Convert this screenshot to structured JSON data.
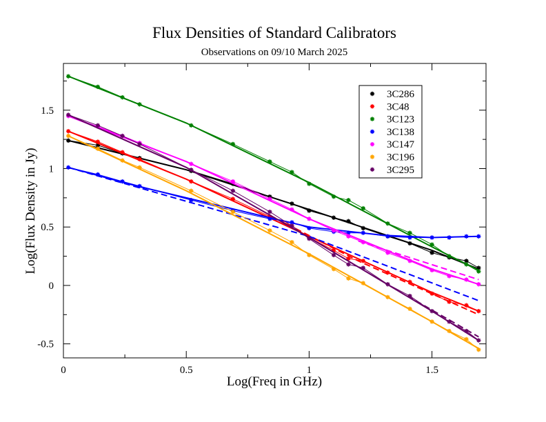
{
  "chart_data": {
    "type": "line",
    "title": "Flux Densities of Standard Calibrators",
    "subtitle": "Observations on 09/10 March 2025",
    "xlabel": "Log(Freq in GHz)",
    "ylabel": "Log(Flux Density in Jy)",
    "xlim": [
      0,
      1.72
    ],
    "ylim": [
      -0.62,
      1.9
    ],
    "x_ticks": [
      0,
      0.5,
      1,
      1.5
    ],
    "x_tick_labels": [
      "0",
      "0.5",
      "1",
      "1.5"
    ],
    "y_ticks": [
      -0.5,
      0,
      0.5,
      1,
      1.5
    ],
    "y_tick_labels": [
      "-0.5",
      "0",
      "0.5",
      "1",
      "1.5"
    ],
    "legend_position": "top-right",
    "series": [
      {
        "name": "3C286",
        "color": "#000000",
        "points": [
          [
            0.02,
            1.24
          ],
          [
            0.14,
            1.2
          ],
          [
            0.24,
            1.13
          ],
          [
            0.31,
            1.09
          ],
          [
            0.52,
            0.98
          ],
          [
            0.69,
            0.87
          ],
          [
            0.84,
            0.76
          ],
          [
            0.93,
            0.7
          ],
          [
            1.0,
            0.64
          ],
          [
            1.1,
            0.58
          ],
          [
            1.16,
            0.55
          ],
          [
            1.22,
            0.49
          ],
          [
            1.32,
            0.42
          ],
          [
            1.41,
            0.36
          ],
          [
            1.5,
            0.28
          ],
          [
            1.57,
            0.24
          ],
          [
            1.64,
            0.21
          ],
          [
            1.69,
            0.15
          ]
        ],
        "fit": [
          [
            0.02,
            1.24
          ],
          [
            0.5,
            0.99
          ],
          [
            1.0,
            0.65
          ],
          [
            1.5,
            0.3
          ],
          [
            1.69,
            0.14
          ]
        ]
      },
      {
        "name": "3C48",
        "color": "#ff0000",
        "points": [
          [
            0.02,
            1.32
          ],
          [
            0.14,
            1.23
          ],
          [
            0.24,
            1.14
          ],
          [
            0.31,
            1.08
          ],
          [
            0.52,
            0.89
          ],
          [
            0.69,
            0.74
          ],
          [
            0.84,
            0.59
          ],
          [
            0.93,
            0.51
          ],
          [
            1.0,
            0.41
          ],
          [
            1.1,
            0.3
          ],
          [
            1.16,
            0.23
          ],
          [
            1.22,
            0.21
          ],
          [
            1.32,
            0.11
          ],
          [
            1.41,
            0.03
          ],
          [
            1.5,
            -0.07
          ],
          [
            1.57,
            -0.14
          ],
          [
            1.64,
            -0.17
          ],
          [
            1.69,
            -0.22
          ]
        ],
        "fit": [
          [
            0.02,
            1.32
          ],
          [
            0.5,
            0.91
          ],
          [
            1.0,
            0.42
          ],
          [
            1.5,
            -0.06
          ],
          [
            1.69,
            -0.22
          ]
        ],
        "fit_dashed": [
          [
            0.84,
            0.6
          ],
          [
            1.2,
            0.21
          ],
          [
            1.69,
            -0.25
          ]
        ]
      },
      {
        "name": "3C123",
        "color": "#008000",
        "points": [
          [
            0.02,
            1.79
          ],
          [
            0.14,
            1.7
          ],
          [
            0.24,
            1.61
          ],
          [
            0.31,
            1.55
          ],
          [
            0.52,
            1.37
          ],
          [
            0.69,
            1.21
          ],
          [
            0.84,
            1.06
          ],
          [
            0.93,
            0.97
          ],
          [
            1.0,
            0.87
          ],
          [
            1.1,
            0.76
          ],
          [
            1.16,
            0.73
          ],
          [
            1.22,
            0.66
          ],
          [
            1.32,
            0.53
          ],
          [
            1.41,
            0.45
          ],
          [
            1.5,
            0.35
          ],
          [
            1.57,
            0.25
          ],
          [
            1.64,
            0.18
          ],
          [
            1.69,
            0.12
          ]
        ],
        "fit": [
          [
            0.02,
            1.79
          ],
          [
            0.5,
            1.39
          ],
          [
            1.0,
            0.88
          ],
          [
            1.5,
            0.33
          ],
          [
            1.69,
            0.13
          ]
        ]
      },
      {
        "name": "3C138",
        "color": "#0000ff",
        "points": [
          [
            0.02,
            1.01
          ],
          [
            0.14,
            0.95
          ],
          [
            0.24,
            0.89
          ],
          [
            0.31,
            0.85
          ],
          [
            0.52,
            0.73
          ],
          [
            0.69,
            0.64
          ],
          [
            0.84,
            0.57
          ],
          [
            0.93,
            0.54
          ],
          [
            1.0,
            0.49
          ],
          [
            1.1,
            0.46
          ],
          [
            1.16,
            0.45
          ],
          [
            1.22,
            0.45
          ],
          [
            1.32,
            0.42
          ],
          [
            1.41,
            0.41
          ],
          [
            1.5,
            0.41
          ],
          [
            1.57,
            0.41
          ],
          [
            1.64,
            0.42
          ],
          [
            1.69,
            0.42
          ]
        ],
        "fit": [
          [
            0.02,
            1.01
          ],
          [
            0.3,
            0.85
          ],
          [
            0.5,
            0.75
          ],
          [
            0.8,
            0.6
          ],
          [
            1.0,
            0.5
          ],
          [
            1.3,
            0.43
          ],
          [
            1.5,
            0.41
          ],
          [
            1.69,
            0.42
          ]
        ],
        "fit_dashed": [
          [
            0.02,
            1.01
          ],
          [
            0.5,
            0.72
          ],
          [
            1.0,
            0.42
          ],
          [
            1.69,
            -0.13
          ]
        ]
      },
      {
        "name": "3C147",
        "color": "#ff00ff",
        "points": [
          [
            0.02,
            1.45
          ],
          [
            0.14,
            1.36
          ],
          [
            0.24,
            1.28
          ],
          [
            0.31,
            1.22
          ],
          [
            0.52,
            1.04
          ],
          [
            0.69,
            0.89
          ],
          [
            0.84,
            0.74
          ],
          [
            0.93,
            0.65
          ],
          [
            1.0,
            0.57
          ],
          [
            1.1,
            0.47
          ],
          [
            1.16,
            0.42
          ],
          [
            1.22,
            0.37
          ],
          [
            1.32,
            0.28
          ],
          [
            1.41,
            0.21
          ],
          [
            1.5,
            0.13
          ],
          [
            1.57,
            0.08
          ],
          [
            1.64,
            0.05
          ],
          [
            1.69,
            0.01
          ]
        ],
        "fit": [
          [
            0.02,
            1.45
          ],
          [
            0.5,
            1.06
          ],
          [
            1.0,
            0.57
          ],
          [
            1.5,
            0.14
          ],
          [
            1.69,
            0.01
          ]
        ],
        "fit_dashed": [
          [
            1.2,
            0.38
          ],
          [
            1.69,
            0.05
          ]
        ]
      },
      {
        "name": "3C196",
        "color": "#ffa500",
        "points": [
          [
            0.02,
            1.28
          ],
          [
            0.14,
            1.17
          ],
          [
            0.24,
            1.07
          ],
          [
            0.31,
            1.01
          ],
          [
            0.52,
            0.81
          ],
          [
            0.69,
            0.63
          ],
          [
            0.84,
            0.47
          ],
          [
            0.93,
            0.37
          ],
          [
            1.0,
            0.26
          ],
          [
            1.1,
            0.14
          ],
          [
            1.16,
            0.06
          ],
          [
            1.22,
            0.02
          ],
          [
            1.32,
            -0.1
          ],
          [
            1.41,
            -0.2
          ],
          [
            1.5,
            -0.31
          ],
          [
            1.57,
            -0.39
          ],
          [
            1.64,
            -0.46
          ],
          [
            1.69,
            -0.55
          ]
        ],
        "fit": [
          [
            0.02,
            1.28
          ],
          [
            0.5,
            0.81
          ],
          [
            1.0,
            0.27
          ],
          [
            1.5,
            -0.31
          ],
          [
            1.69,
            -0.54
          ]
        ]
      },
      {
        "name": "3C295",
        "color": "#660066",
        "points": [
          [
            0.02,
            1.46
          ],
          [
            0.14,
            1.37
          ],
          [
            0.24,
            1.28
          ],
          [
            0.31,
            1.21
          ],
          [
            0.52,
            0.99
          ],
          [
            0.69,
            0.81
          ],
          [
            0.84,
            0.63
          ],
          [
            0.93,
            0.51
          ],
          [
            1.0,
            0.4
          ],
          [
            1.1,
            0.26
          ],
          [
            1.16,
            0.18
          ],
          [
            1.22,
            0.15
          ],
          [
            1.32,
            0.01
          ],
          [
            1.41,
            -0.09
          ],
          [
            1.5,
            -0.22
          ],
          [
            1.57,
            -0.31
          ],
          [
            1.64,
            -0.39
          ],
          [
            1.69,
            -0.47
          ]
        ],
        "fit": [
          [
            0.02,
            1.46
          ],
          [
            0.5,
            1.01
          ],
          [
            1.0,
            0.41
          ],
          [
            1.5,
            -0.22
          ],
          [
            1.69,
            -0.47
          ]
        ],
        "fit_dashed": [
          [
            1.4,
            -0.09
          ],
          [
            1.69,
            -0.44
          ]
        ]
      }
    ]
  }
}
